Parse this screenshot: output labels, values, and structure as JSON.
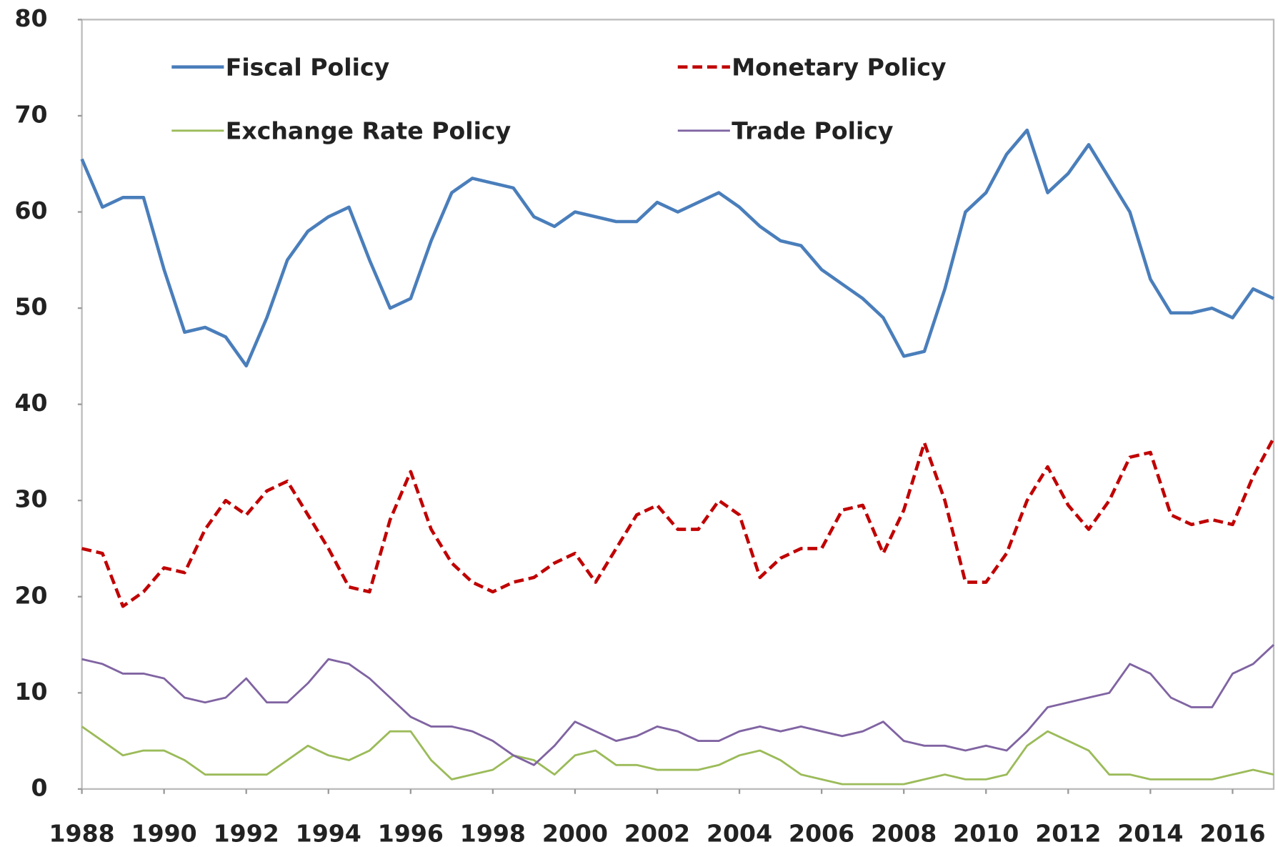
{
  "chart_data": {
    "type": "line",
    "x": [
      1988,
      1988.5,
      1989,
      1989.5,
      1990,
      1990.5,
      1991,
      1991.5,
      1992,
      1992.5,
      1993,
      1993.5,
      1994,
      1994.5,
      1995,
      1995.5,
      1996,
      1996.5,
      1997,
      1997.5,
      1998,
      1998.5,
      1999,
      1999.5,
      2000,
      2000.5,
      2001,
      2001.5,
      2002,
      2002.5,
      2003,
      2003.5,
      2004,
      2004.5,
      2005,
      2005.5,
      2006,
      2006.5,
      2007,
      2007.5,
      2008,
      2008.5,
      2009,
      2009.5,
      2010,
      2010.5,
      2011,
      2011.5,
      2012,
      2012.5,
      2013,
      2013.5,
      2014,
      2014.5,
      2015,
      2015.5,
      2016,
      2016.5,
      2017
    ],
    "series": [
      {
        "name": "Fiscal Policy",
        "color": "#4a7ebb",
        "style": "solid",
        "linewidth": 4,
        "values": [
          65.5,
          60.5,
          61.5,
          61.5,
          54,
          47.5,
          48,
          47,
          44,
          49,
          55,
          58,
          59.5,
          60.5,
          55,
          50,
          51,
          57,
          62,
          63.5,
          63,
          62.5,
          59.5,
          58.5,
          60,
          59.5,
          59,
          59,
          61,
          60,
          61,
          62,
          60.5,
          58.5,
          57,
          56.5,
          54,
          52.5,
          51,
          49,
          45,
          45.5,
          52,
          60,
          62,
          66,
          68.5,
          62,
          64,
          67,
          63.5,
          60,
          53,
          49.5,
          49.5,
          50,
          49,
          52,
          51
        ]
      },
      {
        "name": "Monetary Policy",
        "color": "#c00000",
        "style": "dashed",
        "linewidth": 4,
        "values": [
          25,
          24.5,
          19,
          20.5,
          23,
          22.5,
          27,
          30,
          28.5,
          31,
          32,
          28.5,
          25,
          21,
          20.5,
          28,
          33,
          27,
          23.5,
          21.5,
          20.5,
          21.5,
          22,
          23.5,
          24.5,
          21.5,
          25,
          28.5,
          29.5,
          27,
          27,
          30,
          28.5,
          22,
          24,
          25,
          25,
          29,
          29.5,
          24.5,
          29,
          36,
          30,
          21.5,
          21.5,
          24.5,
          30,
          33.5,
          29.5,
          27,
          30,
          34.5,
          35,
          28.5,
          27.5,
          28,
          27.5,
          32.5,
          36.5
        ]
      },
      {
        "name": "Exchange Rate Policy",
        "color": "#9bbb59",
        "style": "solid",
        "linewidth": 2.5,
        "values": [
          6.5,
          5,
          3.5,
          4,
          4,
          3,
          1.5,
          1.5,
          1.5,
          1.5,
          3,
          4.5,
          3.5,
          3,
          4,
          6,
          6,
          3,
          1,
          1.5,
          2,
          3.5,
          3,
          1.5,
          3.5,
          4,
          2.5,
          2.5,
          2,
          2,
          2,
          2.5,
          3.5,
          4,
          3,
          1.5,
          1,
          0.5,
          0.5,
          0.5,
          0.5,
          1,
          1.5,
          1,
          1,
          1.5,
          4.5,
          6,
          5,
          4,
          1.5,
          1.5,
          1,
          1,
          1,
          1,
          1.5,
          2,
          1.5
        ]
      },
      {
        "name": "Trade Policy",
        "color": "#8064a2",
        "style": "solid",
        "linewidth": 2.5,
        "values": [
          13.5,
          13,
          12,
          12,
          11.5,
          9.5,
          9,
          9.5,
          11.5,
          9,
          9,
          11,
          13.5,
          13,
          11.5,
          9.5,
          7.5,
          6.5,
          6.5,
          6,
          5,
          3.5,
          2.5,
          4.5,
          7,
          6,
          5,
          5.5,
          6.5,
          6,
          5,
          5,
          6,
          6.5,
          6,
          6.5,
          6,
          5.5,
          6,
          7,
          5,
          4.5,
          4.5,
          4,
          4.5,
          4,
          6,
          8.5,
          9,
          9.5,
          10,
          13,
          12,
          9.5,
          8.5,
          8.5,
          12,
          13,
          15
        ]
      }
    ],
    "xlim": [
      1988,
      2017
    ],
    "ylim": [
      0,
      80
    ],
    "xticks": [
      1988,
      1990,
      1992,
      1994,
      1996,
      1998,
      2000,
      2002,
      2004,
      2006,
      2008,
      2010,
      2012,
      2014,
      2016
    ],
    "yticks": [
      0,
      10,
      20,
      30,
      40,
      50,
      60,
      70,
      80
    ],
    "grid": false,
    "legend": "top"
  }
}
